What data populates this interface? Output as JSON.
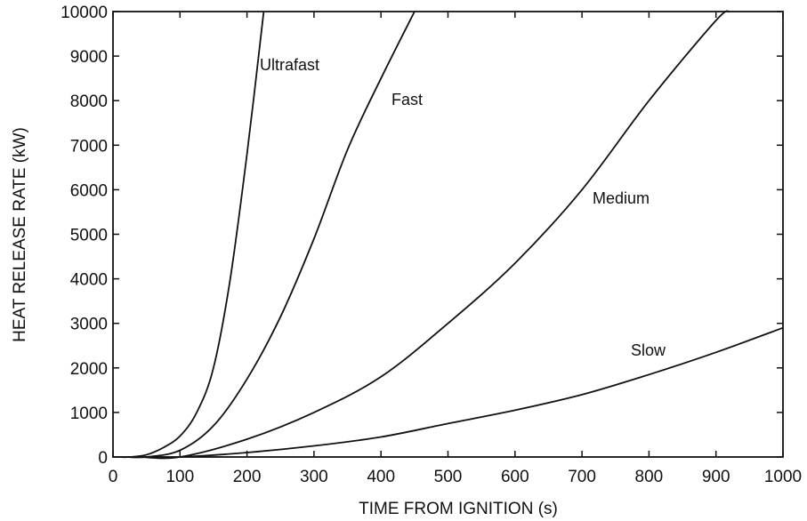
{
  "chart_data": {
    "type": "line",
    "title": "",
    "xlabel": "TIME FROM IGNITION (s)",
    "ylabel": "HEAT RELEASE RATE (kW)",
    "xlim": [
      0,
      1000
    ],
    "ylim": [
      0,
      10000
    ],
    "xticks": [
      0,
      100,
      200,
      300,
      400,
      500,
      600,
      700,
      800,
      900,
      1000
    ],
    "yticks": [
      0,
      1000,
      2000,
      3000,
      4000,
      5000,
      6000,
      7000,
      8000,
      9000,
      10000
    ],
    "grid": false,
    "legend": "none",
    "color": "#111111",
    "series": [
      {
        "name": "Ultrafast",
        "x": [
          10,
          25,
          50,
          75,
          100,
          125,
          150,
          175,
          200,
          225
        ],
        "y": [
          0,
          0,
          50,
          210,
          470,
          1000,
          2000,
          4000,
          6800,
          10000
        ]
      },
      {
        "name": "Fast",
        "x": [
          20,
          50,
          100,
          150,
          200,
          250,
          300,
          350,
          400,
          450
        ],
        "y": [
          0,
          0,
          150,
          700,
          1750,
          3150,
          4900,
          6900,
          8500,
          10000
        ]
      },
      {
        "name": "Medium",
        "x": [
          40,
          100,
          200,
          300,
          400,
          500,
          600,
          700,
          800,
          900,
          920
        ],
        "y": [
          0,
          0,
          400,
          1000,
          1800,
          3000,
          4350,
          6000,
          8000,
          9800,
          10000
        ]
      },
      {
        "name": "Slow",
        "x": [
          60,
          100,
          200,
          300,
          400,
          500,
          600,
          700,
          800,
          900,
          1000
        ],
        "y": [
          0,
          0,
          100,
          250,
          450,
          750,
          1050,
          1400,
          1850,
          2350,
          2900
        ]
      }
    ]
  }
}
